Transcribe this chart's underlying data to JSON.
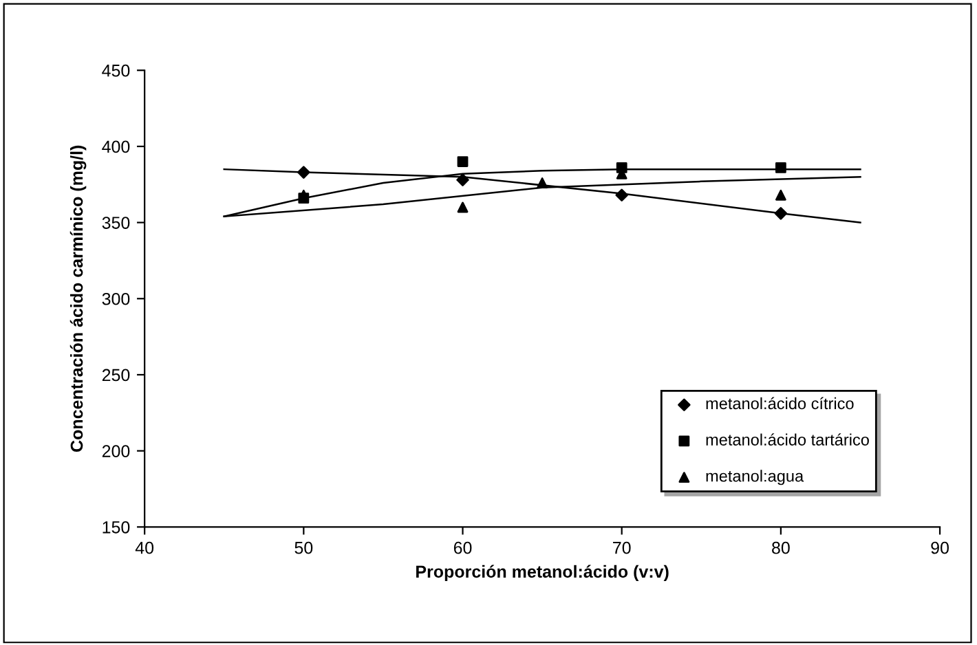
{
  "chart_data": {
    "type": "scatter",
    "xlabel": "Proporción metanol:ácido (v:v)",
    "ylabel": "Concentración ácido carmínico (mg/l)",
    "xlim": [
      40,
      90
    ],
    "xticks": [
      40,
      50,
      60,
      70,
      80,
      90
    ],
    "ylim": [
      150,
      450
    ],
    "yticks": [
      150,
      200,
      250,
      300,
      350,
      400,
      450
    ],
    "grid": false,
    "legend": "bottom right",
    "series": [
      {
        "name": "metanol:ácido cítrico",
        "marker": "diamond",
        "color": "#000000",
        "x": [
          50,
          60,
          70,
          80
        ],
        "values": [
          383,
          378,
          368,
          356
        ]
      },
      {
        "name": "metanol:ácido tartárico",
        "marker": "square",
        "color": "#000000",
        "x": [
          50,
          60,
          70,
          80
        ],
        "values": [
          366,
          390,
          386,
          386
        ]
      },
      {
        "name": "metanol:agua",
        "marker": "triangle",
        "color": "#000000",
        "x": [
          50,
          60,
          65,
          70,
          80
        ],
        "values": [
          368,
          360,
          376,
          382,
          368
        ]
      },
      {
        "type": "line",
        "marker": "none",
        "color": "#000000",
        "x": [
          45,
          50,
          60,
          70,
          80,
          85
        ],
        "values": [
          385,
          383,
          380,
          369,
          356,
          350
        ]
      },
      {
        "type": "line",
        "marker": "none",
        "color": "#000000",
        "x": [
          45,
          50,
          55,
          60,
          65,
          70,
          85
        ],
        "values": [
          354,
          366,
          376,
          382,
          384,
          385,
          385
        ]
      },
      {
        "type": "line",
        "marker": "none",
        "color": "#000000",
        "x": [
          45,
          55,
          65,
          75,
          85
        ],
        "values": [
          354,
          362,
          373,
          377,
          380
        ]
      }
    ]
  }
}
